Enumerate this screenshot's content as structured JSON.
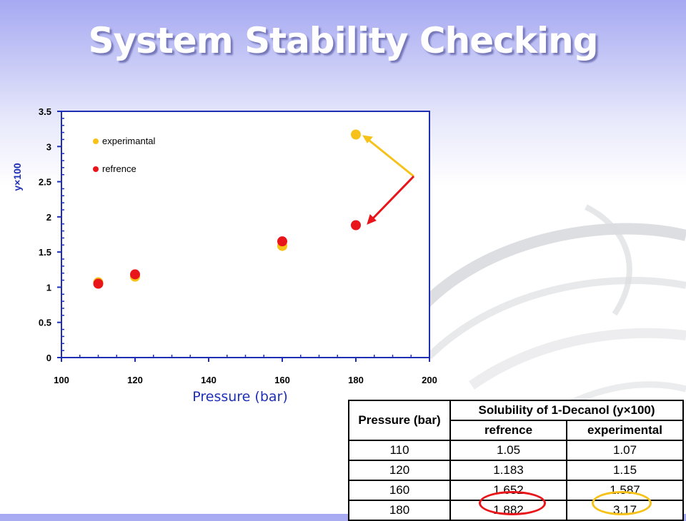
{
  "slide": {
    "title": "System Stability Checking"
  },
  "colors": {
    "experimental": "#f6c21a",
    "reference": "#e8151b",
    "axis": "#1f2fb5",
    "arrow_yellow": "#f6c21a",
    "arrow_red": "#e8151b"
  },
  "chart_data": {
    "type": "scatter",
    "xlabel": "Pressure (bar)",
    "ylabel": "y×100",
    "xlim": [
      100,
      200
    ],
    "ylim": [
      0,
      3.5
    ],
    "xticks": [
      100,
      120,
      140,
      160,
      180,
      200
    ],
    "yticks": [
      0,
      0.5,
      1,
      1.5,
      2,
      2.5,
      3,
      3.5
    ],
    "grid": false,
    "legend_position": "top-left",
    "series": [
      {
        "name": "experimantal",
        "color": "#f6c21a",
        "x": [
          110,
          120,
          160,
          180
        ],
        "y": [
          1.07,
          1.15,
          1.587,
          3.17
        ]
      },
      {
        "name": "refrence",
        "color": "#e8151b",
        "x": [
          110,
          120,
          160,
          180
        ],
        "y": [
          1.05,
          1.183,
          1.652,
          1.882
        ]
      }
    ]
  },
  "table": {
    "header_col1": "Pressure (bar)",
    "header_group": "Solubility of 1-Decanol (y×100)",
    "sub_col2": "refrence",
    "sub_col3": "experimental",
    "rows": [
      [
        "110",
        "1.05",
        "1.07"
      ],
      [
        "120",
        "1.183",
        "1.15"
      ],
      [
        "160",
        "1.652",
        "1.587"
      ],
      [
        "180",
        "1.882",
        "3.17"
      ]
    ]
  }
}
